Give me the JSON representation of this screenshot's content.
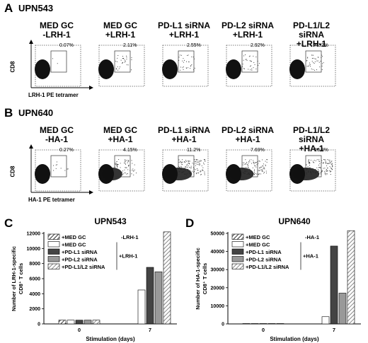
{
  "panelA": {
    "letter": "A",
    "title": "UPN543",
    "ylabel": "CD8",
    "xlabel": "LRH-1 PE tetramer",
    "plots": [
      {
        "line1": "MED GC",
        "line2": "-LRH-1",
        "pct": "0.07%",
        "n": 2,
        "spread": 0.0
      },
      {
        "line1": "MED GC",
        "line2": "+LRH-1",
        "pct": "2.11%",
        "n": 30,
        "spread": 0.3
      },
      {
        "line1": "PD-L1 siRNA",
        "line2": "+LRH-1",
        "pct": "2.55%",
        "n": 30,
        "spread": 0.3
      },
      {
        "line1": "PD-L2 siRNA",
        "line2": "+LRH-1",
        "pct": "2.92%",
        "n": 30,
        "spread": 0.3
      },
      {
        "line1": "PD-L1/L2 siRNA",
        "line2": "+LRH-1",
        "pct": "4.32%",
        "n": 40,
        "spread": 0.35
      }
    ]
  },
  "panelB": {
    "letter": "B",
    "title": "UPN640",
    "ylabel": "CD8",
    "xlabel": "HA-1 PE tetramer",
    "plots": [
      {
        "line1": "MED GC",
        "line2": "-HA-1",
        "pct": "0.27%",
        "n": 10,
        "spread": 0.3
      },
      {
        "line1": "MED GC",
        "line2": "+HA-1",
        "pct": "4.15%",
        "n": 60,
        "spread": 0.6
      },
      {
        "line1": "PD-L1 siRNA",
        "line2": "+HA-1",
        "pct": "11.2%",
        "n": 120,
        "spread": 0.9
      },
      {
        "line1": "PD-L2 siRNA",
        "line2": "+HA-1",
        "pct": "7.69%",
        "n": 100,
        "spread": 0.8
      },
      {
        "line1": "PD-L1/L2 siRNA",
        "line2": "+HA-1",
        "pct": "10.9%",
        "n": 120,
        "spread": 0.9
      }
    ]
  },
  "panelC": {
    "letter": "C"
  },
  "panelD": {
    "letter": "D"
  },
  "chart_data": [
    {
      "type": "bar",
      "title": "UPN543",
      "xlabel": "Stimulation (days)",
      "ylabel": "Number of LRH-1-specific CD8⁺ T cells",
      "ylim": [
        0,
        12000
      ],
      "yticks": [
        0,
        2000,
        4000,
        6000,
        8000,
        10000,
        12000
      ],
      "categories": [
        "0",
        "7"
      ],
      "legend_neg_label": "-LRH-1",
      "legend_pos_label": "+LRH-1",
      "series": [
        {
          "name": "+MED GC",
          "group": "neg",
          "values": [
            500,
            0
          ],
          "fill": "hatch"
        },
        {
          "name": "+MED GC",
          "group": "pos",
          "values": [
            500,
            4500
          ],
          "fill": "#ffffff"
        },
        {
          "name": "+PD-L1 siRNA",
          "group": "pos",
          "values": [
            500,
            7500
          ],
          "fill": "#444444"
        },
        {
          "name": "+PD-L2 siRNA",
          "group": "pos",
          "values": [
            500,
            6900
          ],
          "fill": "#999999"
        },
        {
          "name": "+PD-L1/L2 siRNA",
          "group": "pos",
          "values": [
            500,
            12200
          ],
          "fill": "hatch-gray"
        }
      ]
    },
    {
      "type": "bar",
      "title": "UPN640",
      "xlabel": "Stimulation (days)",
      "ylabel": "Number of HA-1-specific CD8⁺ T cells",
      "ylim": [
        0,
        50000
      ],
      "yticks": [
        0,
        10000,
        20000,
        30000,
        40000,
        50000
      ],
      "categories": [
        "0",
        "7"
      ],
      "legend_neg_label": "-HA-1",
      "legend_pos_label": "+HA-1",
      "series": [
        {
          "name": "+MED GC",
          "group": "neg",
          "values": [
            200,
            0
          ],
          "fill": "hatch"
        },
        {
          "name": "+MED GC",
          "group": "pos",
          "values": [
            200,
            4000
          ],
          "fill": "#ffffff"
        },
        {
          "name": "+PD-L1 siRNA",
          "group": "pos",
          "values": [
            200,
            43000
          ],
          "fill": "#444444"
        },
        {
          "name": "+PD-L2 siRNA",
          "group": "pos",
          "values": [
            200,
            17000
          ],
          "fill": "#999999"
        },
        {
          "name": "+PD-L1/L2 siRNA",
          "group": "pos",
          "values": [
            200,
            51500
          ],
          "fill": "hatch-gray"
        }
      ]
    }
  ]
}
